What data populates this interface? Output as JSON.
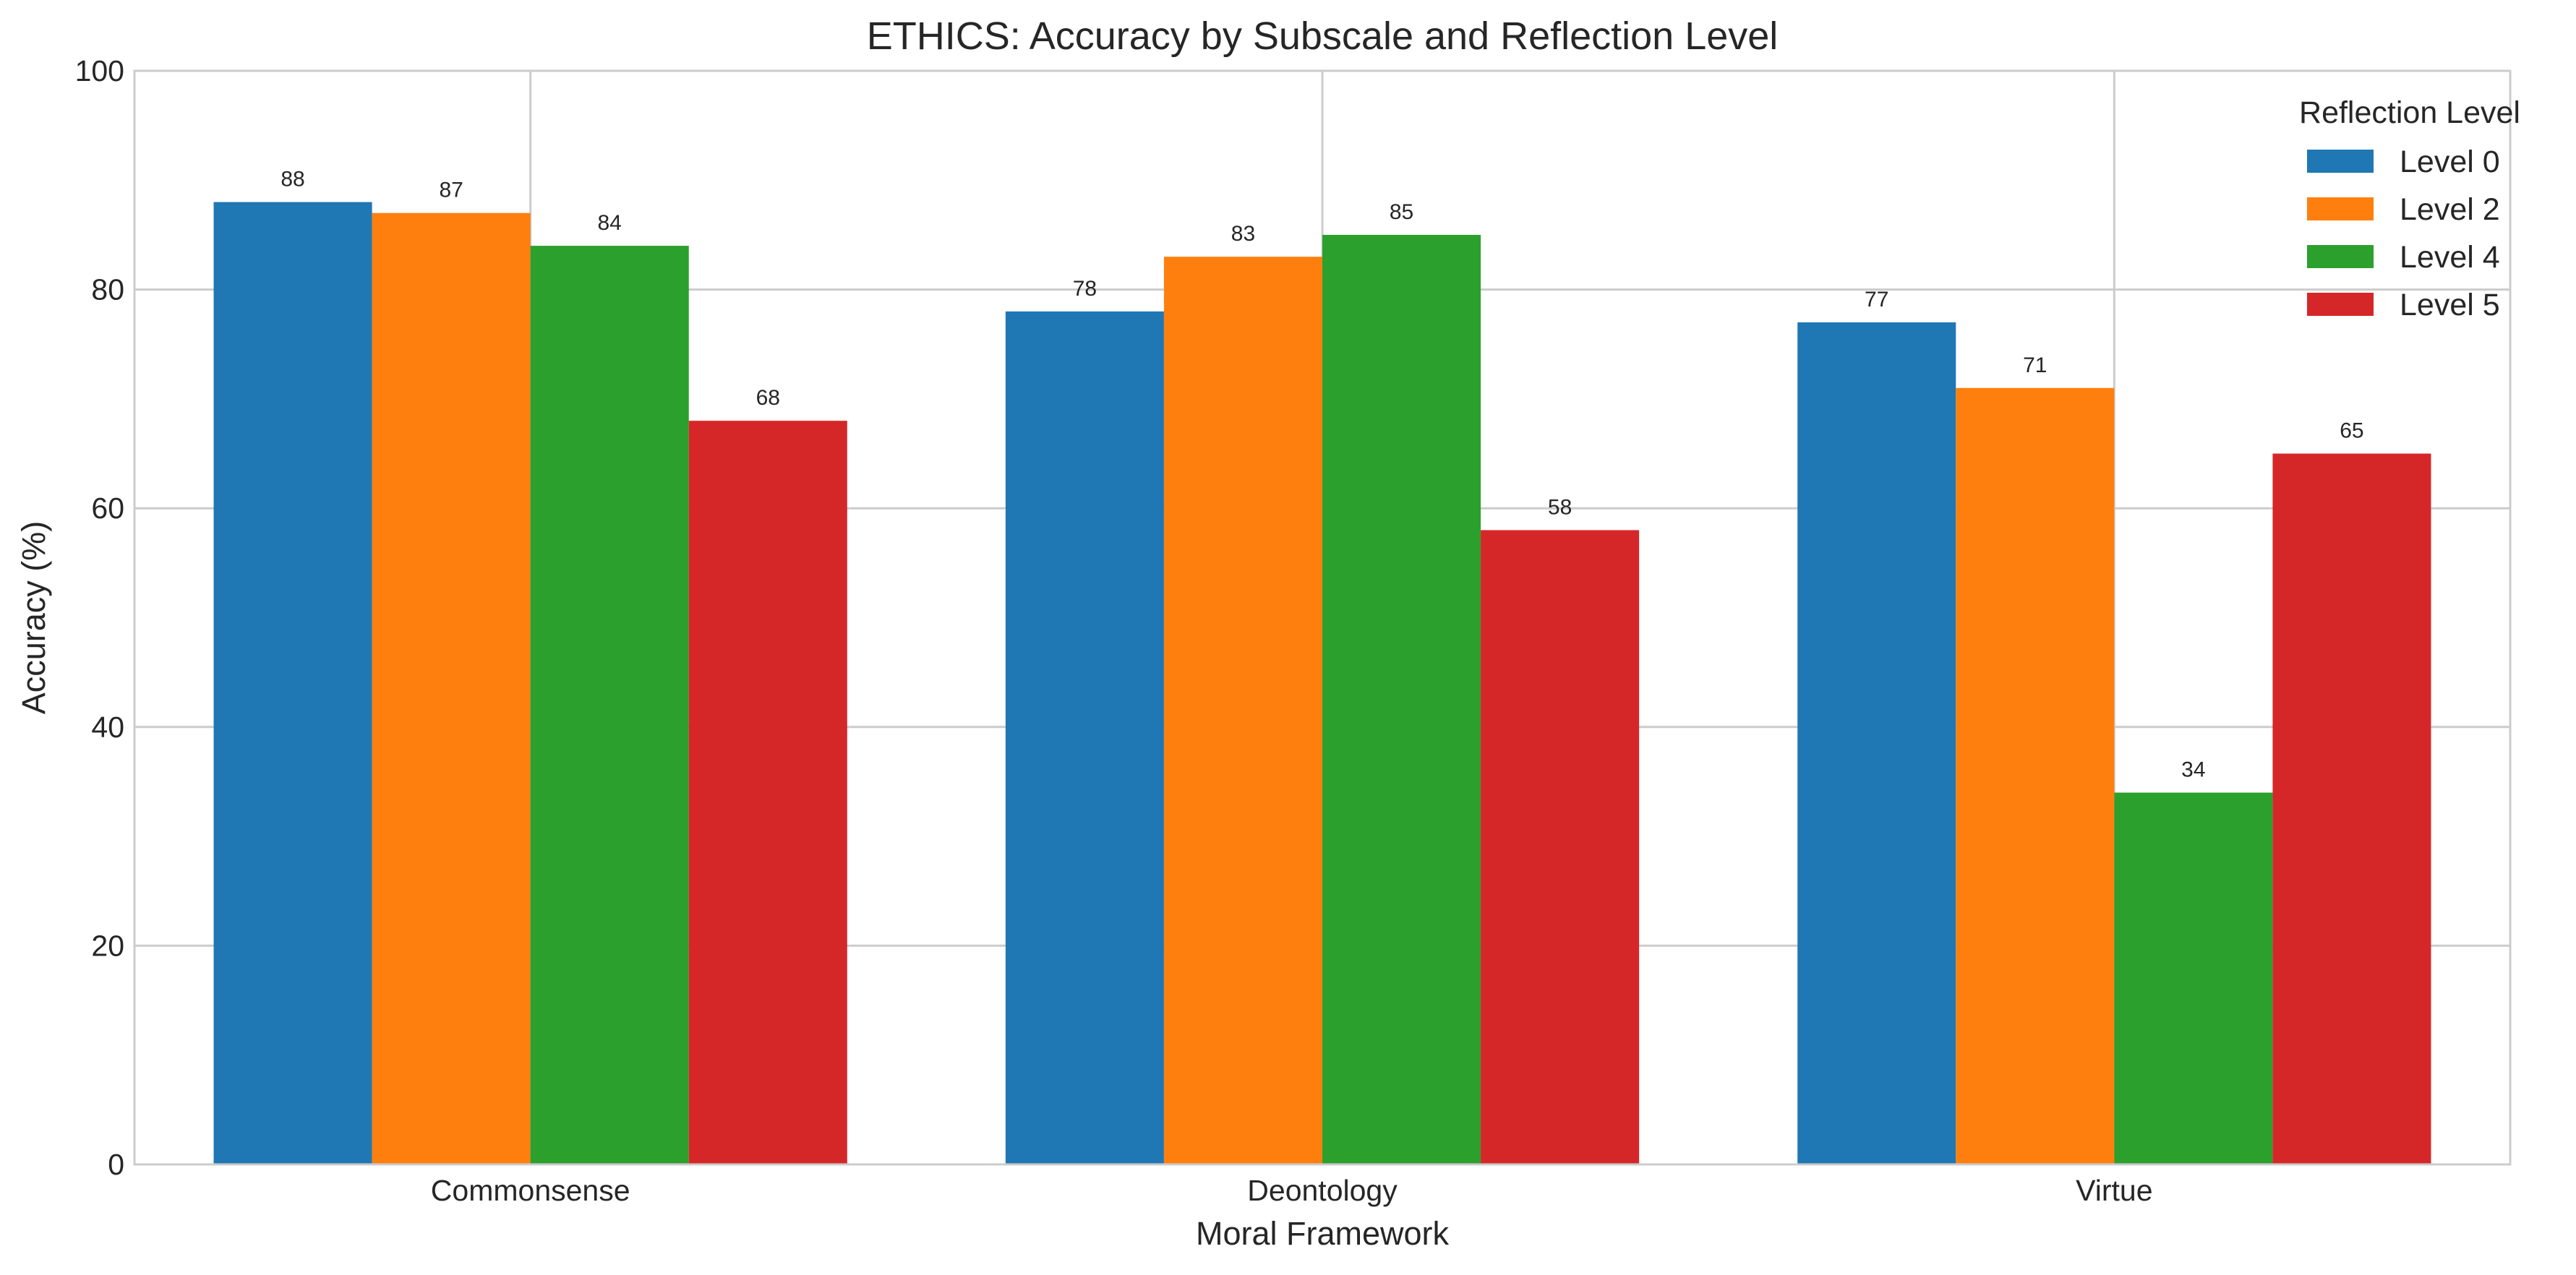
{
  "chart_data": {
    "type": "bar",
    "title": "ETHICS: Accuracy by Subscale and Reflection Level",
    "xlabel": "Moral Framework",
    "ylabel": "Accuracy (%)",
    "ylim": [
      0,
      100
    ],
    "yticks": [
      0,
      20,
      40,
      60,
      80,
      100
    ],
    "grid": true,
    "categories": [
      "Commonsense",
      "Deontology",
      "Virtue"
    ],
    "legend": {
      "title": "Reflection Level",
      "placement": "top-right"
    },
    "series": [
      {
        "name": "Level 0",
        "color": "#1f77b4",
        "values": [
          88,
          78,
          77
        ]
      },
      {
        "name": "Level 2",
        "color": "#ff7f0e",
        "values": [
          87,
          83,
          71
        ]
      },
      {
        "name": "Level 4",
        "color": "#2ca02c",
        "values": [
          84,
          85,
          34
        ]
      },
      {
        "name": "Level 5",
        "color": "#d62728",
        "values": [
          68,
          58,
          65
        ]
      }
    ]
  }
}
